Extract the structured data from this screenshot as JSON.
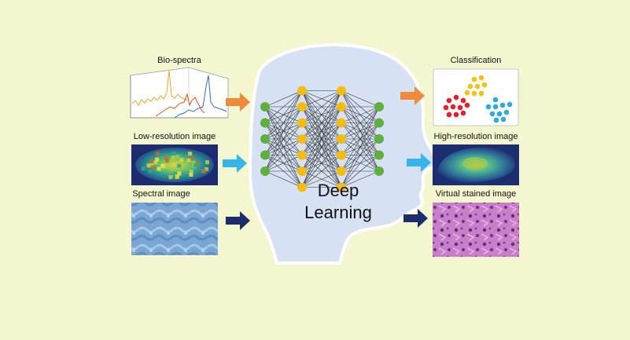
{
  "inputs": {
    "bio_spectra": "Bio-spectra",
    "low_res": "Low-resolution image",
    "spectral": "Spectral image"
  },
  "center": {
    "line1": "Deep",
    "line2": "Learning"
  },
  "outputs": {
    "classification": "Classification",
    "high_res": "High-resolution image",
    "virtual_stained": "Virtual stained image"
  },
  "colors": {
    "background": "#f4f6cf",
    "head_fill": "#d6e2f3",
    "arrow_orange": "#ef8a3b",
    "arrow_cyan": "#35b5ea",
    "arrow_navy": "#1b2d6b",
    "node_green": "#5faf3f",
    "node_yellow": "#f3bd10",
    "class_red": "#e5202a",
    "class_yellow": "#f3c212",
    "class_blue": "#2eaadf"
  },
  "network_layers": [
    5,
    7,
    7,
    5
  ]
}
